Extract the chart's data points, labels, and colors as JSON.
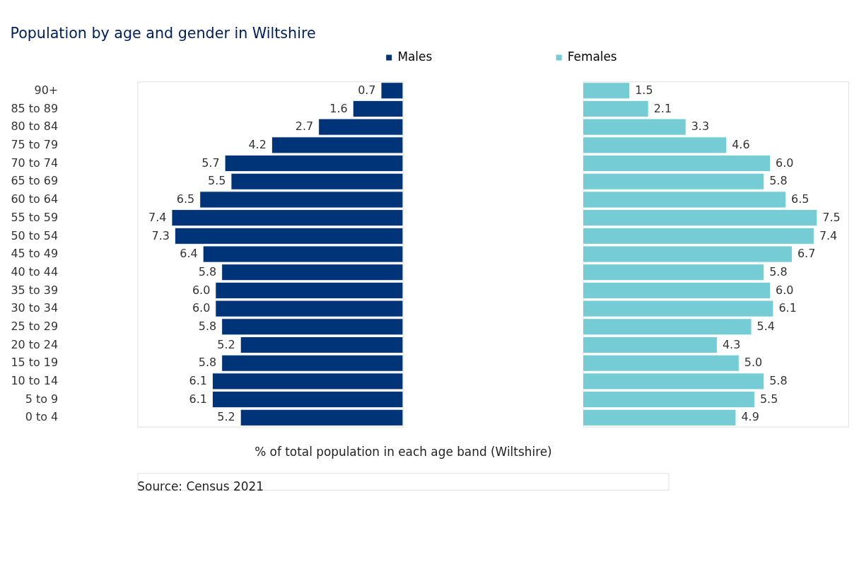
{
  "chart_data": [
    {
      "type": "bar",
      "orientation": "horizontal",
      "title": "Population by age and gender in Wiltshire",
      "xlabel": "% of total population in each age band (Wiltshire)",
      "categories": [
        "90+",
        "85 to 89",
        "80 to 84",
        "75 to 79",
        "70 to 74",
        "65 to 69",
        "60 to 64",
        "55 to 59",
        "50 to 54",
        "45 to 49",
        "40 to 44",
        "35 to 39",
        "30 to 34",
        "25 to 29",
        "20 to 24",
        "15 to 19",
        "10 to 14",
        "5 to 9",
        "0 to 4"
      ],
      "series": [
        {
          "name": "Males",
          "color": "#003478",
          "values": [
            0.7,
            1.6,
            2.7,
            4.2,
            5.7,
            5.5,
            6.5,
            7.4,
            7.3,
            6.4,
            5.8,
            6.0,
            6.0,
            5.8,
            5.2,
            5.8,
            6.1,
            6.1,
            5.2
          ],
          "value_labels": [
            "0.7",
            "1.6",
            "2.7",
            "4.2",
            "5.7",
            "5.5",
            "6.5",
            "7.4",
            "7.3",
            "6.4",
            "5.8",
            "6.0",
            "6.0",
            "5.8",
            "5.2",
            "5.8",
            "6.1",
            "6.1",
            "5.2"
          ]
        }
      ],
      "xlim": [
        8.5,
        0
      ],
      "tick_labels": "y",
      "legend": "top right",
      "annotations": [
        "Source: Census 2021"
      ]
    },
    {
      "type": "bar",
      "orientation": "horizontal",
      "categories": [
        "90+",
        "85 to 89",
        "80 to 84",
        "75 to 79",
        "70 to 74",
        "65 to 69",
        "60 to 64",
        "55 to 59",
        "50 to 54",
        "45 to 49",
        "40 to 44",
        "35 to 39",
        "30 to 34",
        "25 to 29",
        "20 to 24",
        "15 to 19",
        "10 to 14",
        "5 to 9",
        "0 to 4"
      ],
      "series": [
        {
          "name": "Females",
          "color": "#75ccd4",
          "values": [
            1.5,
            2.1,
            3.3,
            4.6,
            6.0,
            5.8,
            6.5,
            7.5,
            7.4,
            6.7,
            5.8,
            6.0,
            6.1,
            5.4,
            4.3,
            5.0,
            5.8,
            5.5,
            4.9
          ],
          "value_labels": [
            "1.5",
            "2.1",
            "3.3",
            "4.6",
            "6.0",
            "5.8",
            "6.5",
            "7.5",
            "7.4",
            "6.7",
            "5.8",
            "6.0",
            "6.1",
            "5.4",
            "4.3",
            "5.0",
            "5.8",
            "5.5",
            "4.9"
          ]
        }
      ],
      "xlim": [
        0,
        8.5
      ],
      "tick_labels": false,
      "legend": "top left"
    }
  ]
}
